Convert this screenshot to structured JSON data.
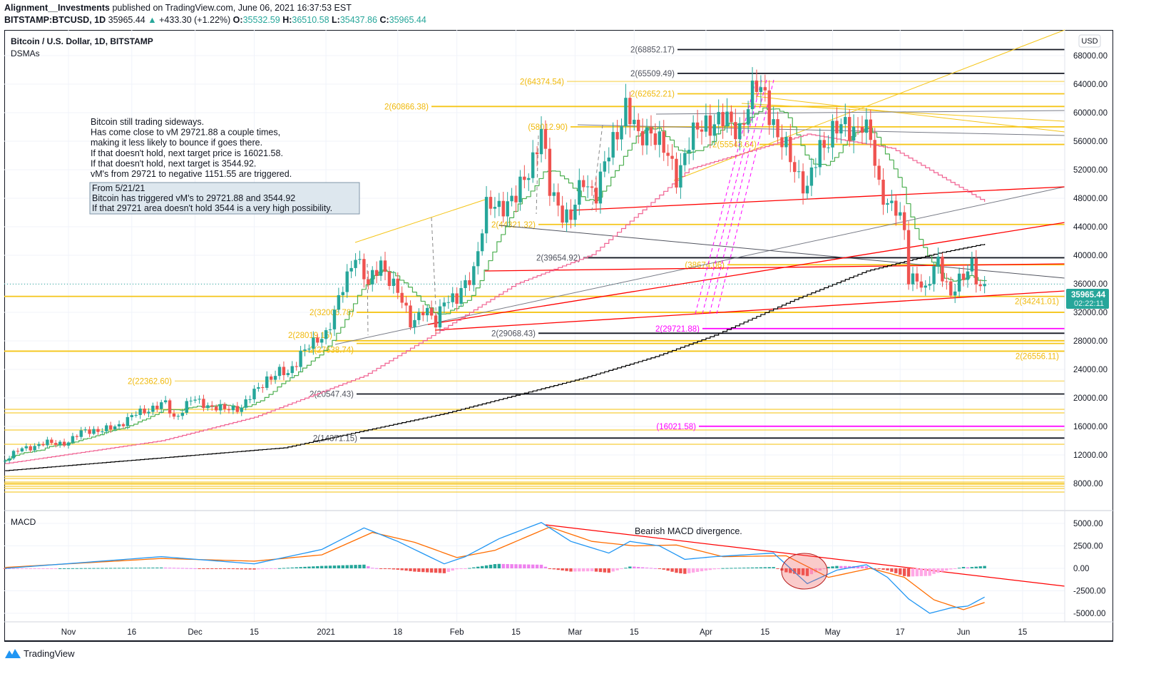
{
  "header": {
    "author": "Alignment__Investments",
    "published": "published on TradingView.com, June 06, 2021 16:37:53 EST",
    "symbol": "BITSTAMP:BTCUSD, 1D",
    "last": "35965.44",
    "change": "+433.30 (+1.22%)",
    "o_label": "O:",
    "o": "35532.59",
    "h_label": "H:",
    "h": "36510.58",
    "l_label": "L:",
    "l": "35437.86",
    "c_label": "C:",
    "c": "35965.44"
  },
  "pane": {
    "title": "Bitcoin / U.S. Dollar, 1D, BITSTAMP",
    "indicator": "DSMAs",
    "currency": "USD",
    "macd_label": "MACD",
    "price_badge": "35965.44",
    "countdown": "02:22:11"
  },
  "notes": {
    "main": [
      "Bitcoin still trading sideways.",
      "Has come close to vM 29721.88 a couple times,",
      "making it less likely to bounce if goes there.",
      "If that doesn't hold, next target price is 16021.58.",
      "If that doesn't hold, next target is 3544.92.",
      "vM's from 29721 to negative 1151.55 are triggered."
    ],
    "box": [
      "From 5/21/21",
      "Bitcoin has triggered vM's to 29721.88 and 3544.92",
      "If that 29721 area doesn't hold 3544 is a very high possibility."
    ],
    "macd_note": "Bearish MACD divergence."
  },
  "footer": {
    "brand": "TradingView"
  },
  "colors": {
    "up": "#26a69a",
    "down": "#ef5350",
    "level_yellow": "#f5c518",
    "magenta": "#ff00ff",
    "macd": "#2196f3",
    "signal": "#ff6d00",
    "fast_ma": "#4caf50",
    "mid_ma": "#f06292",
    "slow_ma": "#000000",
    "trend_red": "#ff0000"
  },
  "chart_data": [
    {
      "type": "candlestick",
      "title": "Bitcoin / U.S. Dollar, 1D, BITSTAMP",
      "ylim": [
        6000,
        70000
      ],
      "y_ticks": [
        "68000.00",
        "64000.00",
        "60000.00",
        "56000.00",
        "52000.00",
        "48000.00",
        "44000.00",
        "40000.00",
        "36000.00",
        "32000.00",
        "28000.00",
        "24000.00",
        "20000.00",
        "16000.00",
        "12000.00",
        "8000.00"
      ],
      "x_ticks": [
        "Nov",
        "16",
        "Dec",
        "15",
        "2021",
        "18",
        "Feb",
        "15",
        "Mar",
        "15",
        "Apr",
        "15",
        "May",
        "17",
        "Jun",
        "15"
      ],
      "x_tick_dates": [
        "2020-11-01",
        "2020-11-16",
        "2020-12-01",
        "2020-12-15",
        "2021-01-01",
        "2021-01-18",
        "2021-02-01",
        "2021-02-15",
        "2021-03-01",
        "2021-03-15",
        "2021-04-01",
        "2021-04-15",
        "2021-05-01",
        "2021-05-17",
        "2021-06-01",
        "2021-06-15"
      ],
      "closes": [
        [
          "2020-10-17",
          11350
        ],
        [
          "2020-10-21",
          12900
        ],
        [
          "2020-10-27",
          13650
        ],
        [
          "2020-11-01",
          13750
        ],
        [
          "2020-11-05",
          15600
        ],
        [
          "2020-11-09",
          15300
        ],
        [
          "2020-11-13",
          16300
        ],
        [
          "2020-11-17",
          17700
        ],
        [
          "2020-11-21",
          18700
        ],
        [
          "2020-11-24",
          19150
        ],
        [
          "2020-11-26",
          17150
        ],
        [
          "2020-11-30",
          19700
        ],
        [
          "2020-12-03",
          19200
        ],
        [
          "2020-12-08",
          18300
        ],
        [
          "2020-12-12",
          18800
        ],
        [
          "2020-12-16",
          21300
        ],
        [
          "2020-12-18",
          22800
        ],
        [
          "2020-12-21",
          23500
        ],
        [
          "2020-12-23",
          23250
        ],
        [
          "2020-12-26",
          26400
        ],
        [
          "2020-12-29",
          27400
        ],
        [
          "2021-01-01",
          29300
        ],
        [
          "2021-01-03",
          32000
        ],
        [
          "2021-01-06",
          36800
        ],
        [
          "2021-01-08",
          40600
        ],
        [
          "2021-01-11",
          35500
        ],
        [
          "2021-01-14",
          39100
        ],
        [
          "2021-01-17",
          35800
        ],
        [
          "2021-01-21",
          30800
        ],
        [
          "2021-01-24",
          32300
        ],
        [
          "2021-01-27",
          30400
        ],
        [
          "2021-01-29",
          34300
        ],
        [
          "2021-02-01",
          33500
        ],
        [
          "2021-02-05",
          38300
        ],
        [
          "2021-02-08",
          46400
        ],
        [
          "2021-02-12",
          47300
        ],
        [
          "2021-02-15",
          47900
        ],
        [
          "2021-02-18",
          52100
        ],
        [
          "2021-02-21",
          57500
        ],
        [
          "2021-02-23",
          48900
        ],
        [
          "2021-02-26",
          46300
        ],
        [
          "2021-02-28",
          45200
        ],
        [
          "2021-03-03",
          50500
        ],
        [
          "2021-03-06",
          48900
        ],
        [
          "2021-03-10",
          55800
        ],
        [
          "2021-03-13",
          61200
        ],
        [
          "2021-03-16",
          56000
        ],
        [
          "2021-03-19",
          58100
        ],
        [
          "2021-03-22",
          54500
        ],
        [
          "2021-03-25",
          51300
        ],
        [
          "2021-03-28",
          55800
        ],
        [
          "2021-04-01",
          58800
        ],
        [
          "2021-04-05",
          58700
        ],
        [
          "2021-04-09",
          58000
        ],
        [
          "2021-04-13",
          63500
        ],
        [
          "2021-04-15",
          62900
        ],
        [
          "2021-04-18",
          56200
        ],
        [
          "2021-04-21",
          53800
        ],
        [
          "2021-04-25",
          49000
        ],
        [
          "2021-04-28",
          55000
        ],
        [
          "2021-05-01",
          57800
        ],
        [
          "2021-05-05",
          57500
        ],
        [
          "2021-05-08",
          58900
        ],
        [
          "2021-05-10",
          55800
        ],
        [
          "2021-05-12",
          49400
        ],
        [
          "2021-05-16",
          46400
        ],
        [
          "2021-05-18",
          42900
        ],
        [
          "2021-05-19",
          36700
        ],
        [
          "2021-05-21",
          37300
        ],
        [
          "2021-05-23",
          34700
        ],
        [
          "2021-05-26",
          39300
        ],
        [
          "2021-05-29",
          34600
        ],
        [
          "2021-06-01",
          36700
        ],
        [
          "2021-06-03",
          39200
        ],
        [
          "2021-06-05",
          35500
        ],
        [
          "2021-06-06",
          35965.44
        ]
      ],
      "mid_ma": [
        [
          "2020-10-17",
          10800
        ],
        [
          "2020-11-23",
          14000
        ],
        [
          "2020-12-15",
          17300
        ],
        [
          "2021-01-10",
          23100
        ],
        [
          "2021-01-29",
          29800
        ],
        [
          "2021-02-15",
          36000
        ],
        [
          "2021-03-05",
          40100
        ],
        [
          "2021-03-28",
          52100
        ],
        [
          "2021-04-25",
          57000
        ],
        [
          "2021-05-15",
          55000
        ],
        [
          "2021-06-06",
          47500
        ]
      ],
      "slow_ma": [
        [
          "2020-10-17",
          9800
        ],
        [
          "2020-12-22",
          13000
        ],
        [
          "2021-01-29",
          17800
        ],
        [
          "2021-03-03",
          22800
        ],
        [
          "2021-03-20",
          25800
        ],
        [
          "2021-04-03",
          28800
        ],
        [
          "2021-04-22",
          33800
        ],
        [
          "2021-05-09",
          37800
        ],
        [
          "2021-05-26",
          40300
        ],
        [
          "2021-06-06",
          41600
        ]
      ],
      "levels": [
        {
          "label": "2(68852.17)",
          "price": 68852.17,
          "color": "#131722"
        },
        {
          "label": "2(65509.49)",
          "price": 65509.49,
          "color": "#131722"
        },
        {
          "label": "2(64374.54)",
          "price": 64374.54,
          "color": "#f5c518"
        },
        {
          "label": "2(62652.21)",
          "price": 62652.21,
          "color": "#f5c518"
        },
        {
          "label": "2(60866.38)",
          "price": 60866.38,
          "color": "#f5c518"
        },
        {
          "label": "(58012.90)",
          "price": 58012.9,
          "color": "#f5c518"
        },
        {
          "label": "2(55543.64)",
          "price": 55543.64,
          "color": "#f5c518"
        },
        {
          "label": "2(44321.32)",
          "price": 44321.32,
          "color": "#f5c518"
        },
        {
          "label": "2(39654.92)",
          "price": 39654.92,
          "color": "#131722"
        },
        {
          "label": "(38674.06)",
          "price": 38674.06,
          "color": "#f5c518"
        },
        {
          "label": "2(34241.01)",
          "price": 34241.01,
          "color": "#f5c518"
        },
        {
          "label": "2(32006.78)",
          "price": 32006.78,
          "color": "#f5c518"
        },
        {
          "label": "2(29721.88)",
          "price": 29721.88,
          "color": "#ff00ff"
        },
        {
          "label": "2(29068.43)",
          "price": 29068.43,
          "color": "#131722"
        },
        {
          "label": "2(28019.15)",
          "price": 28019.15,
          "color": "#f5c518"
        },
        {
          "label": "2(27638.74)",
          "price": 27638.74,
          "color": "#f5c518"
        },
        {
          "label": "2(26556.11)",
          "price": 26556.11,
          "color": "#f5c518"
        },
        {
          "label": "2(22362.60)",
          "price": 22362.6,
          "color": "#f5c518"
        },
        {
          "label": "2(20547.43)",
          "price": 20547.43,
          "color": "#131722"
        },
        {
          "label": "(16021.58)",
          "price": 16021.58,
          "color": "#ff00ff"
        },
        {
          "label": "2(14371.15)",
          "price": 14371.15,
          "color": "#131722"
        }
      ]
    },
    {
      "type": "line",
      "title": "MACD",
      "ylim": [
        -6500,
        6000
      ],
      "y_ticks": [
        "5000.00",
        "2500.00",
        "0.00",
        "-2500.00",
        "-5000.00"
      ],
      "macd": [
        [
          "2020-10-17",
          0
        ],
        [
          "2020-11-23",
          1300
        ],
        [
          "2020-12-15",
          500
        ],
        [
          "2020-12-31",
          2100
        ],
        [
          "2021-01-10",
          4500
        ],
        [
          "2021-01-18",
          3000
        ],
        [
          "2021-01-29",
          500
        ],
        [
          "2021-02-03",
          1300
        ],
        [
          "2021-02-11",
          3300
        ],
        [
          "2021-02-21",
          5100
        ],
        [
          "2021-02-28",
          3000
        ],
        [
          "2021-03-09",
          1700
        ],
        [
          "2021-03-14",
          3000
        ],
        [
          "2021-03-21",
          2500
        ],
        [
          "2021-03-27",
          1000
        ],
        [
          "2021-04-03",
          1300
        ],
        [
          "2021-04-17",
          1700
        ],
        [
          "2021-04-25",
          -1700
        ],
        [
          "2021-05-02",
          -200
        ],
        [
          "2021-05-09",
          400
        ],
        [
          "2021-05-14",
          -1000
        ],
        [
          "2021-05-19",
          -3400
        ],
        [
          "2021-05-24",
          -5000
        ],
        [
          "2021-05-29",
          -4400
        ],
        [
          "2021-06-02",
          -4200
        ],
        [
          "2021-06-06",
          -3200
        ]
      ],
      "signal": [
        [
          "2020-10-17",
          100
        ],
        [
          "2020-11-23",
          1100
        ],
        [
          "2020-12-15",
          800
        ],
        [
          "2020-12-31",
          1500
        ],
        [
          "2021-01-12",
          4000
        ],
        [
          "2021-01-22",
          2900
        ],
        [
          "2021-02-01",
          1200
        ],
        [
          "2021-02-10",
          2000
        ],
        [
          "2021-02-23",
          4600
        ],
        [
          "2021-03-05",
          3000
        ],
        [
          "2021-03-15",
          2500
        ],
        [
          "2021-03-25",
          2600
        ],
        [
          "2021-04-05",
          1300
        ],
        [
          "2021-04-20",
          1400
        ],
        [
          "2021-04-30",
          -1000
        ],
        [
          "2021-05-10",
          0
        ],
        [
          "2021-05-18",
          -1000
        ],
        [
          "2021-05-25",
          -3500
        ],
        [
          "2021-06-01",
          -4600
        ],
        [
          "2021-06-06",
          -3800
        ]
      ]
    }
  ]
}
